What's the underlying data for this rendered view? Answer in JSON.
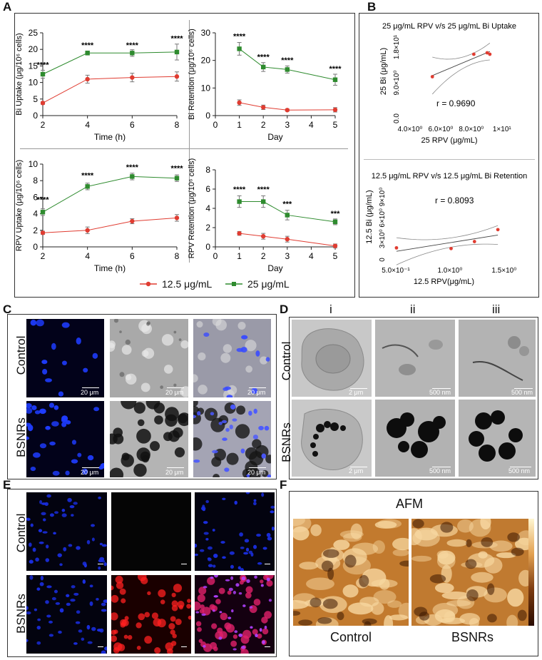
{
  "panels": {
    "A": "A",
    "B": "B",
    "C": "C",
    "D": "D",
    "E": "E",
    "F": "F"
  },
  "colors": {
    "low": "#e03c31",
    "high": "#2e8b2e",
    "mark": "****"
  },
  "legend": {
    "low": "12.5 μg/mL",
    "high": "25 μg/mL"
  },
  "chart_data": [
    {
      "id": "bi-uptake",
      "type": "line",
      "ylabel": "Bi Uptake (μg/10⁶ cells)",
      "xlabel": "Time (h)",
      "xlim": [
        2,
        8
      ],
      "ylim": [
        0,
        25
      ],
      "xticks": [
        2,
        4,
        6,
        8
      ],
      "yticks": [
        0,
        5,
        10,
        15,
        20,
        25
      ],
      "series": [
        {
          "name": "12.5 μg/mL",
          "x": [
            2,
            4,
            6,
            8
          ],
          "y": [
            3.8,
            11.0,
            11.5,
            11.8
          ],
          "err": [
            0.4,
            1.2,
            1.3,
            1.4
          ]
        },
        {
          "name": "25 μg/mL",
          "x": [
            2,
            4,
            6,
            8
          ],
          "y": [
            12.5,
            18.9,
            18.9,
            19.2
          ],
          "err": [
            1.2,
            0.6,
            1.0,
            2.4
          ]
        }
      ],
      "annotations": [
        {
          "x": 2,
          "y": 14.5,
          "text": "****"
        },
        {
          "x": 4,
          "y": 20.5,
          "text": "****"
        },
        {
          "x": 6,
          "y": 20.5,
          "text": "****"
        },
        {
          "x": 8,
          "y": 22.5,
          "text": "****"
        }
      ]
    },
    {
      "id": "bi-retention",
      "type": "line",
      "ylabel": "Bi Retention (μg/10⁶ cells)",
      "xlabel": "Day",
      "xlim": [
        0,
        5
      ],
      "ylim": [
        0,
        30
      ],
      "xticks": [
        0,
        1,
        2,
        3,
        4,
        5
      ],
      "yticks": [
        0,
        10,
        20,
        30
      ],
      "series": [
        {
          "name": "12.5 μg/mL",
          "x": [
            1,
            2,
            3,
            5
          ],
          "y": [
            4.7,
            3.0,
            2.0,
            2.1
          ],
          "err": [
            1.0,
            0.8,
            0.4,
            0.8
          ]
        },
        {
          "name": "25 μg/mL",
          "x": [
            1,
            2,
            3,
            5
          ],
          "y": [
            24.2,
            17.6,
            16.7,
            13.0
          ],
          "err": [
            2.3,
            1.6,
            1.3,
            2.0
          ]
        }
      ],
      "annotations": [
        {
          "x": 1,
          "y": 27.8,
          "text": "****"
        },
        {
          "x": 2,
          "y": 20.3,
          "text": "****"
        },
        {
          "x": 3,
          "y": 19.2,
          "text": "****"
        },
        {
          "x": 5,
          "y": 16.0,
          "text": "****"
        }
      ]
    },
    {
      "id": "rpv-uptake",
      "type": "line",
      "ylabel": "RPV Uptake (μg/10⁶ cells)",
      "xlabel": "Time (h)",
      "xlim": [
        2,
        8
      ],
      "ylim": [
        0,
        10
      ],
      "xticks": [
        2,
        4,
        6,
        8
      ],
      "yticks": [
        0,
        2,
        4,
        6,
        8,
        10
      ],
      "series": [
        {
          "name": "12.5 μg/mL",
          "x": [
            2,
            4,
            6,
            8
          ],
          "y": [
            1.7,
            2.0,
            3.1,
            3.5
          ],
          "err": [
            0.2,
            0.4,
            0.3,
            0.4
          ]
        },
        {
          "name": "25 μg/mL",
          "x": [
            2,
            4,
            6,
            8
          ],
          "y": [
            4.2,
            7.3,
            8.5,
            8.3
          ],
          "err": [
            0.4,
            0.4,
            0.4,
            0.4
          ]
        }
      ],
      "annotations": [
        {
          "x": 2,
          "y": 5.4,
          "text": "****"
        },
        {
          "x": 4,
          "y": 8.3,
          "text": "****"
        },
        {
          "x": 6,
          "y": 9.3,
          "text": "****"
        },
        {
          "x": 8,
          "y": 9.2,
          "text": "****"
        }
      ]
    },
    {
      "id": "rpv-retention",
      "type": "line",
      "ylabel": "RPV Retention (μg/10⁶ cells)",
      "xlabel": "Day",
      "xlim": [
        0,
        5
      ],
      "ylim": [
        0,
        8
      ],
      "xticks": [
        0,
        1,
        2,
        3,
        4,
        5
      ],
      "yticks": [
        0,
        2,
        4,
        6,
        8
      ],
      "series": [
        {
          "name": "12.5 μg/mL",
          "x": [
            1,
            2,
            3,
            5
          ],
          "y": [
            1.4,
            1.1,
            0.8,
            0.1
          ],
          "err": [
            0.2,
            0.3,
            0.3,
            0.2
          ]
        },
        {
          "name": "25 μg/mL",
          "x": [
            1,
            2,
            3,
            5
          ],
          "y": [
            4.7,
            4.7,
            3.3,
            2.6
          ],
          "err": [
            0.6,
            0.6,
            0.5,
            0.3
          ]
        }
      ],
      "annotations": [
        {
          "x": 1,
          "y": 5.7,
          "text": "****"
        },
        {
          "x": 2,
          "y": 5.7,
          "text": "****"
        },
        {
          "x": 3,
          "y": 4.2,
          "text": "***"
        },
        {
          "x": 5,
          "y": 3.2,
          "text": "***"
        }
      ]
    },
    {
      "id": "corr-uptake",
      "type": "scatter",
      "title": "25 μg/mL RPV v/s 25 μg/mL Bi Uptake",
      "xlabel": "25 RPV (μg/mL)",
      "ylabel": "25 Bi (μg/mL)",
      "xticklabels": [
        "4.0×10⁰",
        "6.0×10⁰",
        "8.0×10⁰",
        "1×10¹"
      ],
      "yticklabels": [
        "0.0",
        "9.0×10⁰",
        "1.8×10¹"
      ],
      "xlim": [
        2,
        10
      ],
      "ylim": [
        0,
        24
      ],
      "x": [
        4.2,
        7.3,
        8.3,
        8.5
      ],
      "y": [
        12.5,
        18.8,
        19.2,
        18.8
      ],
      "r_text": "r = 0.9690"
    },
    {
      "id": "corr-retention",
      "type": "scatter",
      "title": "12.5 μg/mL RPV v/s 12.5 μg/mL Bi Retention",
      "xlabel": "12.5 RPV(μg/mL)",
      "ylabel": "12.5 Bi (μg/mL)",
      "xticklabels": [
        "5.0×10⁻¹",
        "1.0×10⁰",
        "1.5×10⁰"
      ],
      "yticklabels": [
        "0",
        "3×10⁰",
        "6×10⁰",
        "9×10⁰"
      ],
      "xlim": [
        0,
        1.6
      ],
      "ylim": [
        0,
        11
      ],
      "x": [
        0.1,
        0.8,
        1.1,
        1.4
      ],
      "y": [
        2.1,
        2.0,
        3.0,
        4.7
      ],
      "r_text": "r = 0.8093"
    }
  ],
  "panelC": {
    "rows": [
      "Control",
      "BSNRs"
    ],
    "scale": "20 μm"
  },
  "panelD": {
    "cols": [
      "i",
      "ii",
      "iii"
    ],
    "rows": [
      "Control",
      "BSNRs"
    ],
    "scales": [
      "2 μm",
      "500 nm",
      "500 nm"
    ]
  },
  "panelE": {
    "rows": [
      "Control",
      "BSNRs"
    ]
  },
  "panelF": {
    "title": "AFM",
    "labels": [
      "Control",
      "BSNRs"
    ]
  }
}
